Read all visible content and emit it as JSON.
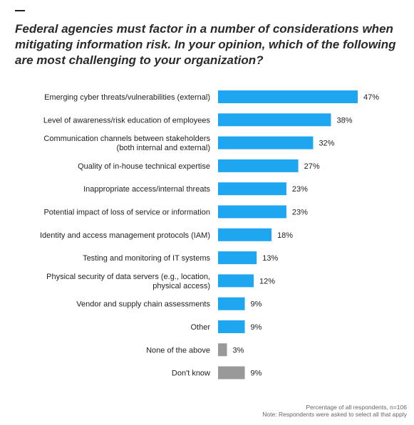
{
  "title": "Federal agencies must factor in a number of considerations when mitigating information risk. In your opinion, which of the following are most challenging to your organization?",
  "footnote": {
    "line1": "Percentage of all respondents, n=106",
    "line2": "Note: Respondents were asked to select all that apply"
  },
  "colors": {
    "primary": "#1ea7f0",
    "muted": "#999999"
  },
  "chart_data": {
    "type": "bar",
    "orientation": "horizontal",
    "value_suffix": "%",
    "xlim": [
      0,
      47
    ],
    "categories": [
      [
        "Emerging cyber threats/vulnerabilities (external)"
      ],
      [
        "Level of awareness/risk education of employees"
      ],
      [
        "Communication channels between stakeholders",
        "(both internal and external)"
      ],
      [
        "Quality of in-house technical expertise"
      ],
      [
        "Inappropriate access/internal threats"
      ],
      [
        "Potential impact of loss of service or information"
      ],
      [
        "Identity and access management protocols (IAM)"
      ],
      [
        "Testing and monitoring of IT systems"
      ],
      [
        "Physical security of data servers (e.g., location,",
        "physical access)"
      ],
      [
        "Vendor and supply chain assessments"
      ],
      [
        "Other"
      ],
      [
        "None of the above"
      ],
      [
        "Don't know"
      ]
    ],
    "values": [
      47,
      38,
      32,
      27,
      23,
      23,
      18,
      13,
      12,
      9,
      9,
      3,
      9
    ],
    "muted": [
      false,
      false,
      false,
      false,
      false,
      false,
      false,
      false,
      false,
      false,
      false,
      true,
      true
    ]
  }
}
